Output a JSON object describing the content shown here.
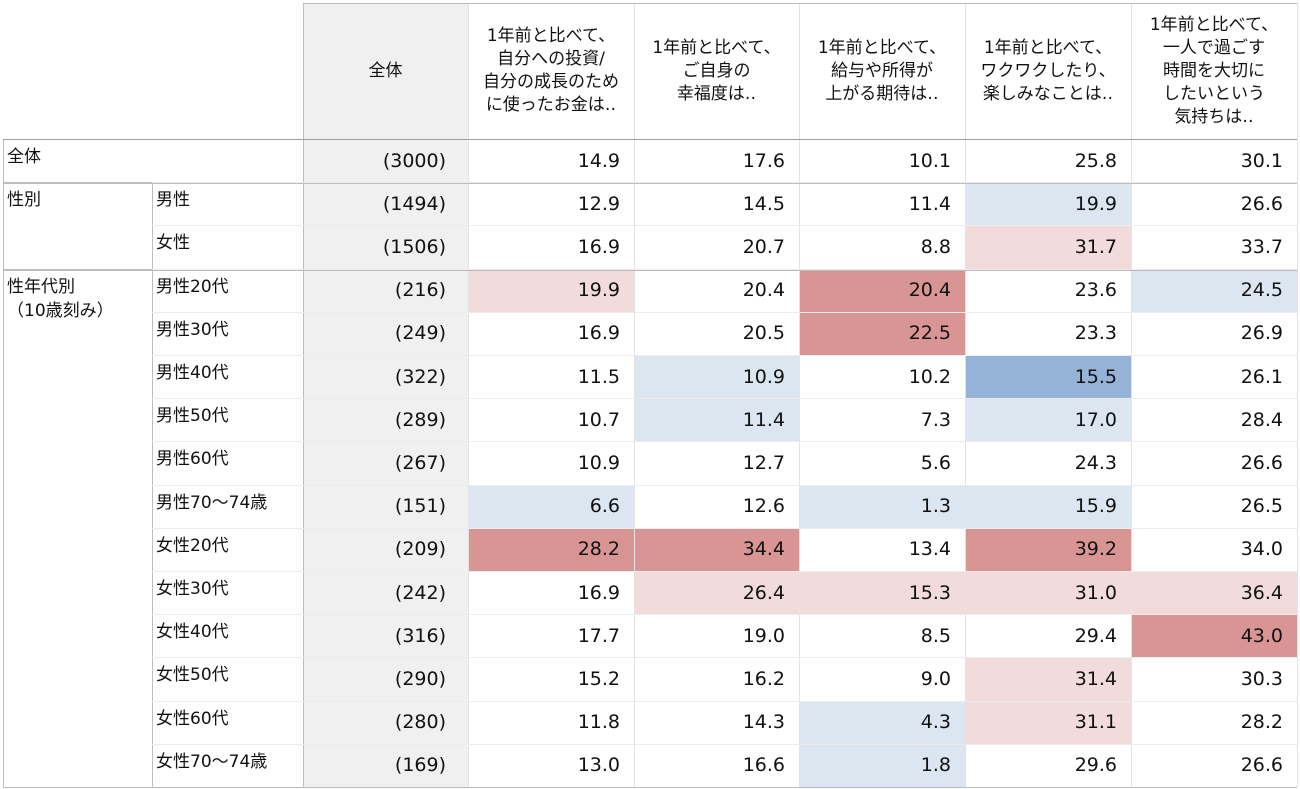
{
  "chart_data": {
    "type": "table",
    "header_total": "全体",
    "columns": [
      "1年前と比べて、\n自分への投資/\n自分の成長のため\nに使ったお金は‥",
      "1年前と比べて、\nご自身の\n幸福度は‥",
      "1年前と比べて、\n給与や所得が\n上がる期待は‥",
      "1年前と比べて、\nワクワクしたり、\n楽しみなことは‥",
      "1年前と比べて、\n一人で過ごす\n時間を大切に\nしたいという\n気持ちは‥"
    ],
    "groups": [
      {
        "label": "全体",
        "rows": [
          0
        ]
      },
      {
        "label": "性別",
        "rows": [
          1,
          2
        ]
      },
      {
        "label": "性年代別\n（10歳刻み）",
        "rows": [
          3,
          4,
          5,
          6,
          7,
          8,
          9,
          10,
          11,
          12,
          13,
          14
        ]
      }
    ],
    "rows": [
      {
        "label": "",
        "n": "(3000)",
        "values": [
          14.9,
          17.6,
          10.1,
          25.8,
          30.1
        ],
        "shade": [
          0,
          0,
          0,
          0,
          0
        ]
      },
      {
        "label": "男性",
        "n": "(1494)",
        "values": [
          12.9,
          14.5,
          11.4,
          19.9,
          26.6
        ],
        "shade": [
          0,
          0,
          0,
          -1,
          0
        ]
      },
      {
        "label": "女性",
        "n": "(1506)",
        "values": [
          16.9,
          20.7,
          8.8,
          31.7,
          33.7
        ],
        "shade": [
          0,
          0,
          0,
          1,
          0
        ]
      },
      {
        "label": "男性20代",
        "n": "(216)",
        "values": [
          19.9,
          20.4,
          20.4,
          23.6,
          24.5
        ],
        "shade": [
          1,
          0,
          2,
          0,
          -1
        ]
      },
      {
        "label": "男性30代",
        "n": "(249)",
        "values": [
          16.9,
          20.5,
          22.5,
          23.3,
          26.9
        ],
        "shade": [
          0,
          0,
          2,
          0,
          0
        ]
      },
      {
        "label": "男性40代",
        "n": "(322)",
        "values": [
          11.5,
          10.9,
          10.2,
          15.5,
          26.1
        ],
        "shade": [
          0,
          -1,
          0,
          -2,
          0
        ]
      },
      {
        "label": "男性50代",
        "n": "(289)",
        "values": [
          10.7,
          11.4,
          7.3,
          17.0,
          28.4
        ],
        "shade": [
          0,
          -1,
          0,
          -1,
          0
        ]
      },
      {
        "label": "男性60代",
        "n": "(267)",
        "values": [
          10.9,
          12.7,
          5.6,
          24.3,
          26.6
        ],
        "shade": [
          0,
          0,
          0,
          0,
          0
        ]
      },
      {
        "label": "男性70～74歳",
        "n": "(151)",
        "values": [
          6.6,
          12.6,
          1.3,
          15.9,
          26.5
        ],
        "shade": [
          -1,
          0,
          -1,
          -1,
          0
        ]
      },
      {
        "label": "女性20代",
        "n": "(209)",
        "values": [
          28.2,
          34.4,
          13.4,
          39.2,
          34.0
        ],
        "shade": [
          2,
          2,
          0,
          2,
          0
        ]
      },
      {
        "label": "女性30代",
        "n": "(242)",
        "values": [
          16.9,
          26.4,
          15.3,
          31.0,
          36.4
        ],
        "shade": [
          0,
          1,
          1,
          1,
          1
        ]
      },
      {
        "label": "女性40代",
        "n": "(316)",
        "values": [
          17.7,
          19.0,
          8.5,
          29.4,
          43.0
        ],
        "shade": [
          0,
          0,
          0,
          0,
          2
        ]
      },
      {
        "label": "女性50代",
        "n": "(290)",
        "values": [
          15.2,
          16.2,
          9.0,
          31.4,
          30.3
        ],
        "shade": [
          0,
          0,
          0,
          1,
          0
        ]
      },
      {
        "label": "女性60代",
        "n": "(280)",
        "values": [
          11.8,
          14.3,
          4.3,
          31.1,
          28.2
        ],
        "shade": [
          0,
          0,
          -1,
          1,
          0
        ]
      },
      {
        "label": "女性70～74歳",
        "n": "(169)",
        "values": [
          13.0,
          16.6,
          1.8,
          29.6,
          26.6
        ],
        "shade": [
          0,
          0,
          -1,
          0,
          0
        ]
      }
    ],
    "colors": {
      "strong_high": "#d99594",
      "high": "#f2dcdb",
      "low": "#dce6f1",
      "strong_low": "#95b3d7",
      "n_bg": "#f0f0f0"
    }
  }
}
